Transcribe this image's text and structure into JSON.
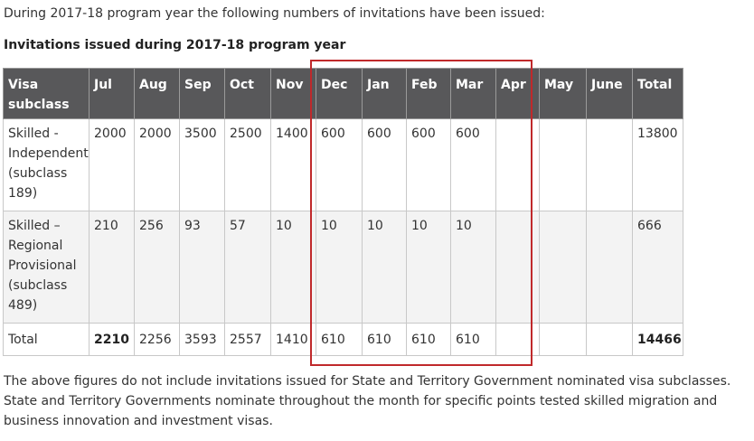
{
  "intro_text": "During 2017-18 program year the following numbers of invitations have been issued:",
  "table_caption": "Invitations issued during 2017-18 program year",
  "table": {
    "headers": [
      "Visa subclass",
      "Jul",
      "Aug",
      "Sep",
      "Oct",
      "Nov",
      "Dec",
      "Jan",
      "Feb",
      "Mar",
      "Apr",
      "May",
      "June",
      "Total"
    ],
    "rows": [
      {
        "cells": [
          "Skilled - Independent (subclass 189)",
          "2000",
          "2000",
          "3500",
          "2500",
          "1400",
          "600",
          "600",
          "600",
          "600",
          "",
          "",
          "",
          "13800"
        ]
      },
      {
        "cells": [
          "Skilled – Regional Provisional (subclass 489)",
          "210",
          "256",
          "93",
          "57",
          "10",
          "10",
          "10",
          "10",
          "10",
          "",
          "",
          "",
          "666"
        ]
      },
      {
        "cells": [
          "Total",
          "2210",
          "2256",
          "3593",
          "2557",
          "1410",
          "610",
          "610",
          "610",
          "610",
          "",
          "",
          "",
          "14466"
        ]
      }
    ]
  },
  "highlight": {
    "color": "#c0292b",
    "columns": [
      "Dec",
      "Jan",
      "Feb",
      "Mar",
      "Apr"
    ]
  },
  "colors": {
    "header_background": "#58585a",
    "header_text": "#ffffff",
    "border": "#c8c8c8"
  },
  "footnote": {
    "line1": "The above figures do not include invitations issued for State and Territory Government nominated visa subclasses.",
    "line2": "State and Territory Governments nominate throughout the month for specific points tested skilled migration and",
    "line3": "business innovation and investment visas."
  }
}
